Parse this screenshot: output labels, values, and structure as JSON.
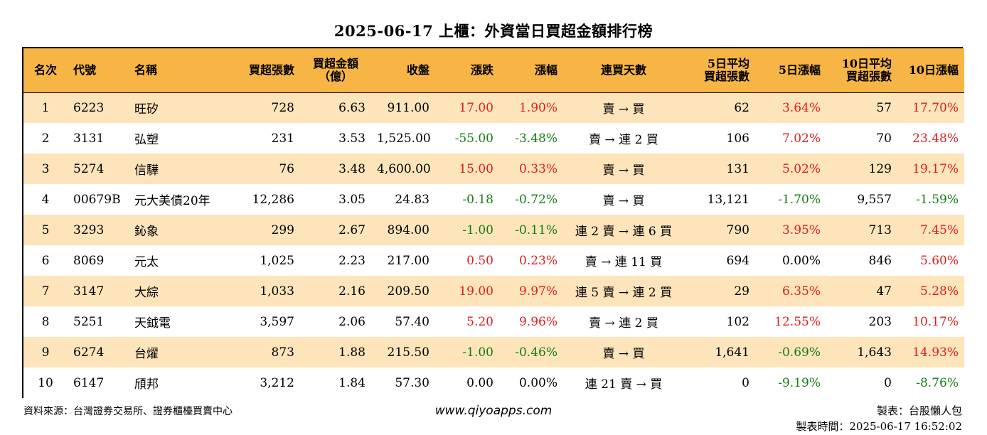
{
  "title": "2025-06-17 上櫃：外資當日買超金額排行榜",
  "headers": [
    "名次",
    "代號",
    "名稱",
    "買超張數",
    "買超金額（億）",
    "收盤",
    "漲跌",
    "漲幅",
    "連買天數",
    "5日平均 買超張數",
    "5日漲幅",
    "10日平均 買超張數",
    "10日漲幅"
  ],
  "header_lines": {
    "amount": [
      "買超金額",
      "（億）"
    ],
    "avg5": [
      "5日平均",
      "買超張數"
    ],
    "avg10": [
      "10日平均",
      "買超張數"
    ]
  },
  "colors": {
    "header_bg": "#f6b545",
    "stripe_bg": "#fde4ba",
    "up": "#e01d1d",
    "down": "#127d12"
  },
  "rows": [
    {
      "rank": "1",
      "code": "6223",
      "name": "旺矽",
      "shares": "728",
      "amount": "6.63",
      "close": "911.00",
      "change": "17.00",
      "pct": "1.90%",
      "streak": "賣 → 買",
      "avg5": "62",
      "pct5": "3.64%",
      "avg10": "57",
      "pct10": "17.70%"
    },
    {
      "rank": "2",
      "code": "3131",
      "name": "弘塑",
      "shares": "231",
      "amount": "3.53",
      "close": "1,525.00",
      "change": "-55.00",
      "pct": "-3.48%",
      "streak": "賣 → 連 2 買",
      "avg5": "106",
      "pct5": "7.02%",
      "avg10": "70",
      "pct10": "23.48%"
    },
    {
      "rank": "3",
      "code": "5274",
      "name": "信驊",
      "shares": "76",
      "amount": "3.48",
      "close": "4,600.00",
      "change": "15.00",
      "pct": "0.33%",
      "streak": "賣 → 買",
      "avg5": "131",
      "pct5": "5.02%",
      "avg10": "129",
      "pct10": "19.17%"
    },
    {
      "rank": "4",
      "code": "00679B",
      "name": "元大美債20年",
      "shares": "12,286",
      "amount": "3.05",
      "close": "24.83",
      "change": "-0.18",
      "pct": "-0.72%",
      "streak": "賣 → 買",
      "avg5": "13,121",
      "pct5": "-1.70%",
      "avg10": "9,557",
      "pct10": "-1.59%"
    },
    {
      "rank": "5",
      "code": "3293",
      "name": "鈊象",
      "shares": "299",
      "amount": "2.67",
      "close": "894.00",
      "change": "-1.00",
      "pct": "-0.11%",
      "streak": "連 2 賣 → 連 6 買",
      "avg5": "790",
      "pct5": "3.95%",
      "avg10": "713",
      "pct10": "7.45%"
    },
    {
      "rank": "6",
      "code": "8069",
      "name": "元太",
      "shares": "1,025",
      "amount": "2.23",
      "close": "217.00",
      "change": "0.50",
      "pct": "0.23%",
      "streak": "賣 → 連 11 買",
      "avg5": "694",
      "pct5": "0.00%",
      "avg10": "846",
      "pct10": "5.60%"
    },
    {
      "rank": "7",
      "code": "3147",
      "name": "大綜",
      "shares": "1,033",
      "amount": "2.16",
      "close": "209.50",
      "change": "19.00",
      "pct": "9.97%",
      "streak": "連 5 賣 → 連 2 買",
      "avg5": "29",
      "pct5": "6.35%",
      "avg10": "47",
      "pct10": "5.28%"
    },
    {
      "rank": "8",
      "code": "5251",
      "name": "天鉞電",
      "shares": "3,597",
      "amount": "2.06",
      "close": "57.40",
      "change": "5.20",
      "pct": "9.96%",
      "streak": "賣 → 連 2 買",
      "avg5": "102",
      "pct5": "12.55%",
      "avg10": "203",
      "pct10": "10.17%"
    },
    {
      "rank": "9",
      "code": "6274",
      "name": "台燿",
      "shares": "873",
      "amount": "1.88",
      "close": "215.50",
      "change": "-1.00",
      "pct": "-0.46%",
      "streak": "賣 → 買",
      "avg5": "1,641",
      "pct5": "-0.69%",
      "avg10": "1,643",
      "pct10": "14.93%"
    },
    {
      "rank": "10",
      "code": "6147",
      "name": "頎邦",
      "shares": "3,212",
      "amount": "1.84",
      "close": "57.30",
      "change": "0.00",
      "pct": "0.00%",
      "streak": "連 21 賣 → 買",
      "avg5": "0",
      "pct5": "-9.19%",
      "avg10": "0",
      "pct10": "-8.76%"
    }
  ],
  "footer": {
    "source": "資料來源：台灣證券交易所、證券櫃檯買賣中心",
    "website": "www.qiyoapps.com",
    "author": "製表：台股懶人包",
    "made_time": "製表時間：2025-06-17 16:52:02"
  }
}
